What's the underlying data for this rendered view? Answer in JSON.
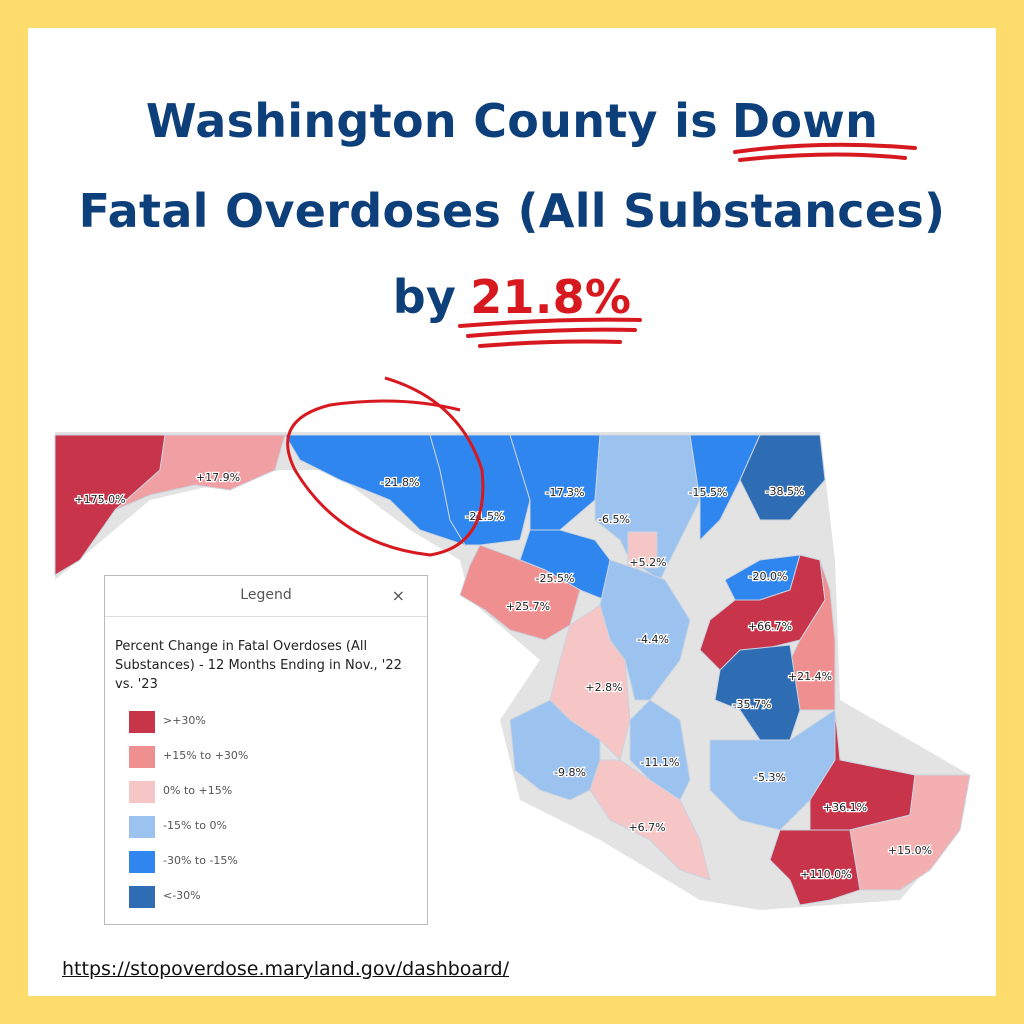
{
  "title": {
    "line1": "Washington County is",
    "line1_highlight": "Down",
    "line2": "Fatal Overdoses (All Substances)",
    "line3": "by",
    "line3_highlight": "21.8%"
  },
  "map": {
    "counties": [
      {
        "label": "+175.0%",
        "color": "#c8344a"
      },
      {
        "label": "+17.9%",
        "color": "#f0a0a3"
      },
      {
        "label": "-21.8%",
        "color": "#2f86ee"
      },
      {
        "label": "-21.5%",
        "color": "#2f86ee"
      },
      {
        "label": "-17.3%",
        "color": "#2f86ee"
      },
      {
        "label": "-6.5%",
        "color": "#9cc3f0"
      },
      {
        "label": "-15.5%",
        "color": "#2f86ee"
      },
      {
        "label": "-38.5%",
        "color": "#2e6db4"
      },
      {
        "label": "+5.2%",
        "color": "#f6c6c6"
      },
      {
        "label": "-25.5%",
        "color": "#2f86ee"
      },
      {
        "label": "+25.7%",
        "color": "#ef8f8f"
      },
      {
        "label": "-4.4%",
        "color": "#9cc3f0"
      },
      {
        "label": "+2.8%",
        "color": "#f6c6c6"
      },
      {
        "label": "-20.0%",
        "color": "#2f86ee"
      },
      {
        "label": "+66.7%",
        "color": "#c8344a"
      },
      {
        "label": "+21.4%",
        "color": "#ef8f8f"
      },
      {
        "label": "-35.7%",
        "color": "#2e6db4"
      },
      {
        "label": "-5.3%",
        "color": "#9cc3f0"
      },
      {
        "label": "+36.1%",
        "color": "#c8344a"
      },
      {
        "label": "+15.0%",
        "color": "#f4b0b0"
      },
      {
        "label": "+110.0%",
        "color": "#c8344a"
      },
      {
        "label": "-9.8%",
        "color": "#9cc3f0"
      },
      {
        "label": "-11.1%",
        "color": "#9cc3f0"
      },
      {
        "label": "+6.7%",
        "color": "#f6c6c6"
      }
    ]
  },
  "legend": {
    "title": "Legend",
    "close": "×",
    "heading": "Percent Change in Fatal Overdoses (All Substances) - 12 Months Ending in Nov., '22 vs. '23",
    "items": [
      {
        "label": ">+30%",
        "color": "#c8344a"
      },
      {
        "label": "+15% to +30%",
        "color": "#ef8f8f"
      },
      {
        "label": "0% to +15%",
        "color": "#f6c6c6"
      },
      {
        "label": "-15% to 0%",
        "color": "#9cc3f0"
      },
      {
        "label": "-30% to -15%",
        "color": "#2f86ee"
      },
      {
        "label": "<-30%",
        "color": "#2e6db4"
      }
    ]
  },
  "source": "https://stopoverdose.maryland.gov/dashboard/"
}
